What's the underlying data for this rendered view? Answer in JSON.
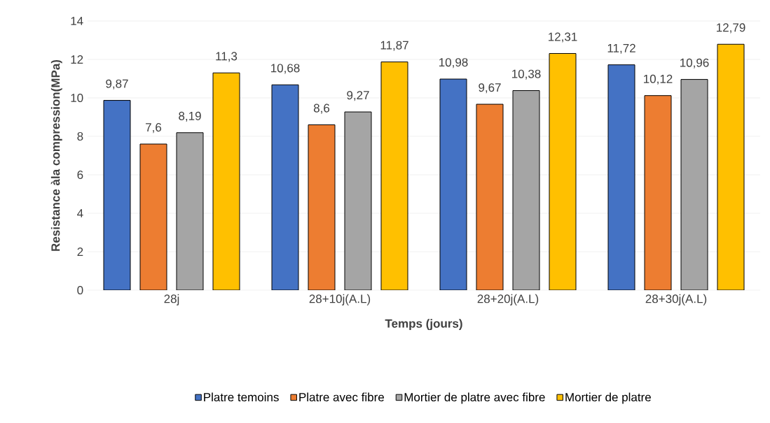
{
  "chart_data": {
    "type": "bar",
    "xlabel": "Temps (jours)",
    "ylabel": "Resistance àla compression(MPa)",
    "categories": [
      "28j",
      "28+10j(A.L)",
      "28+20j(A.L)",
      "28+30j(A.L)"
    ],
    "series": [
      {
        "name": "Platre temoins",
        "color": "#4472c4",
        "values": [
          9.87,
          10.68,
          10.98,
          11.72
        ],
        "value_labels": [
          "9,87",
          "10,68",
          "10,98",
          "11,72"
        ]
      },
      {
        "name": "Platre avec fibre",
        "color": "#ed7d31",
        "values": [
          7.6,
          8.6,
          9.67,
          10.12
        ],
        "value_labels": [
          "7,6",
          "8,6",
          "9,67",
          "10,12"
        ]
      },
      {
        "name": "Mortier de platre avec fibre",
        "color": "#a5a5a5",
        "values": [
          8.19,
          9.27,
          10.38,
          10.96
        ],
        "value_labels": [
          "8,19",
          "9,27",
          "10,38",
          "10,96"
        ]
      },
      {
        "name": "Mortier de platre",
        "color": "#ffc000",
        "values": [
          11.3,
          11.87,
          12.31,
          12.79
        ],
        "value_labels": [
          "11,3",
          "11,87",
          "12,31",
          "12,79"
        ]
      }
    ],
    "ylim": [
      0,
      14
    ],
    "yticks": [
      0,
      2,
      4,
      6,
      8,
      10,
      12,
      14
    ],
    "grid": "y",
    "legend": "bottom"
  }
}
